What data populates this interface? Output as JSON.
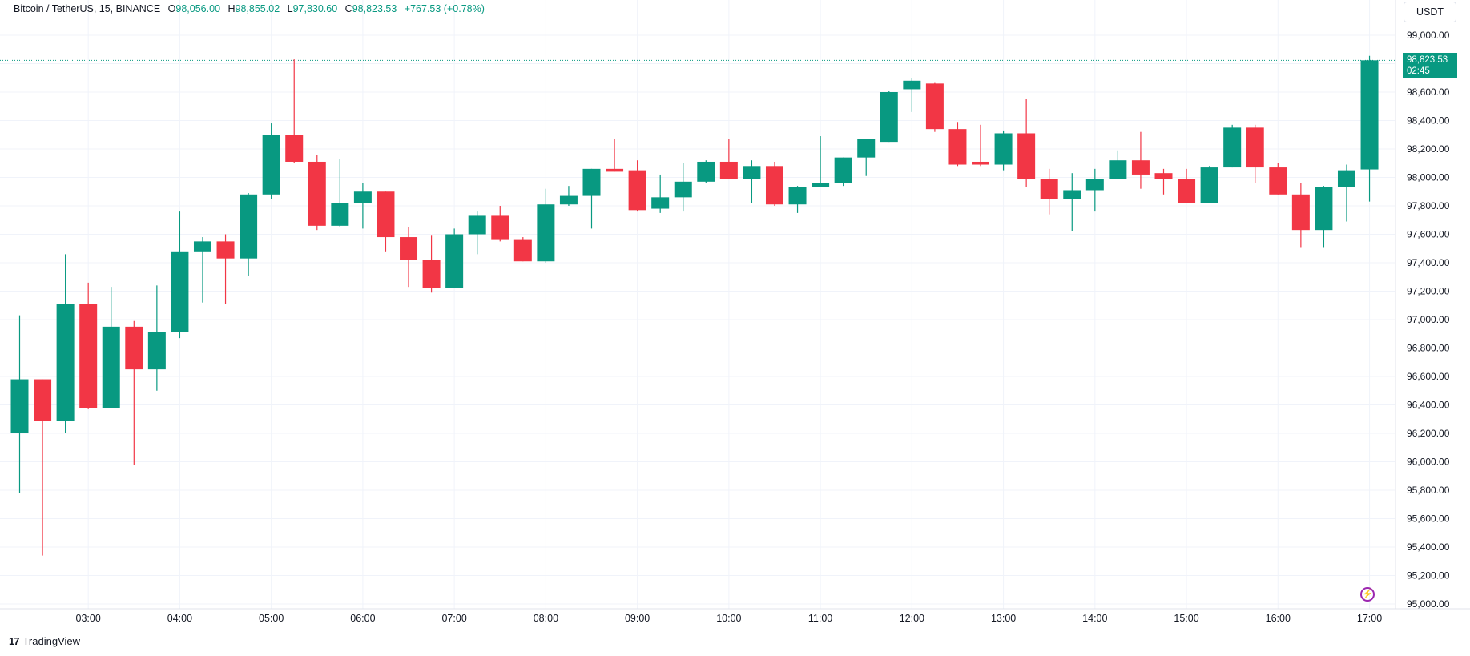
{
  "legend": {
    "symbol": "Bitcoin / TetherUS, 15, BINANCE",
    "o_label": "O",
    "open": "98,056.00",
    "h_label": "H",
    "high": "98,855.02",
    "l_label": "L",
    "low": "97,830.60",
    "c_label": "C",
    "close": "98,823.53",
    "change": "+767.53 (+0.78%)"
  },
  "currency_button": "USDT",
  "price_tag": {
    "price": "98,823.53",
    "countdown": "02:45"
  },
  "brand": "TradingView",
  "colors": {
    "up": "#089981",
    "down": "#f23645",
    "grid": "#f0f3fa",
    "text": "#131722"
  },
  "icons": {
    "flash": "lightning-icon",
    "logo": "tradingview-logo-icon"
  },
  "chart_data": {
    "type": "candlestick",
    "interval": "15",
    "ylim": [
      95000,
      99300
    ],
    "y_ticks": [
      "95,000.00",
      "95,200.00",
      "95,400.00",
      "95,600.00",
      "95,800.00",
      "96,000.00",
      "96,200.00",
      "96,400.00",
      "96,600.00",
      "96,800.00",
      "97,000.00",
      "97,200.00",
      "97,400.00",
      "97,600.00",
      "97,800.00",
      "98,000.00",
      "98,200.00",
      "98,400.00",
      "98,600.00",
      "98,800.00",
      "99,000.00"
    ],
    "x_ticks": [
      "03:00",
      "04:00",
      "05:00",
      "06:00",
      "07:00",
      "08:00",
      "09:00",
      "10:00",
      "11:00",
      "12:00",
      "13:00",
      "14:00",
      "15:00",
      "16:00",
      "17:00"
    ],
    "first_candle_time": "02:15",
    "candles": [
      {
        "o": 96200,
        "h": 97030,
        "l": 95780,
        "c": 96580
      },
      {
        "o": 96580,
        "h": 96580,
        "l": 95340,
        "c": 96290
      },
      {
        "o": 96290,
        "h": 97460,
        "l": 96200,
        "c": 97110
      },
      {
        "o": 97110,
        "h": 97260,
        "l": 96370,
        "c": 96380
      },
      {
        "o": 96380,
        "h": 97230,
        "l": 96380,
        "c": 96950
      },
      {
        "o": 96950,
        "h": 96990,
        "l": 95980,
        "c": 96650
      },
      {
        "o": 96650,
        "h": 97240,
        "l": 96500,
        "c": 96910
      },
      {
        "o": 96910,
        "h": 97760,
        "l": 96870,
        "c": 97480
      },
      {
        "o": 97480,
        "h": 97580,
        "l": 97120,
        "c": 97550
      },
      {
        "o": 97550,
        "h": 97600,
        "l": 97110,
        "c": 97430
      },
      {
        "o": 97430,
        "h": 97890,
        "l": 97310,
        "c": 97880
      },
      {
        "o": 97880,
        "h": 98380,
        "l": 97850,
        "c": 98300
      },
      {
        "o": 98300,
        "h": 98830,
        "l": 98100,
        "c": 98110
      },
      {
        "o": 98110,
        "h": 98160,
        "l": 97630,
        "c": 97660
      },
      {
        "o": 97660,
        "h": 98130,
        "l": 97650,
        "c": 97820
      },
      {
        "o": 97820,
        "h": 97960,
        "l": 97640,
        "c": 97900
      },
      {
        "o": 97900,
        "h": 97900,
        "l": 97480,
        "c": 97580
      },
      {
        "o": 97580,
        "h": 97650,
        "l": 97230,
        "c": 97420
      },
      {
        "o": 97420,
        "h": 97590,
        "l": 97190,
        "c": 97220
      },
      {
        "o": 97220,
        "h": 97640,
        "l": 97220,
        "c": 97600
      },
      {
        "o": 97600,
        "h": 97760,
        "l": 97460,
        "c": 97730
      },
      {
        "o": 97730,
        "h": 97800,
        "l": 97550,
        "c": 97560
      },
      {
        "o": 97560,
        "h": 97580,
        "l": 97410,
        "c": 97410
      },
      {
        "o": 97410,
        "h": 97920,
        "l": 97400,
        "c": 97810
      },
      {
        "o": 97810,
        "h": 97940,
        "l": 97800,
        "c": 97870
      },
      {
        "o": 97870,
        "h": 98060,
        "l": 97640,
        "c": 98060
      },
      {
        "o": 98060,
        "h": 98270,
        "l": 98040,
        "c": 98040
      },
      {
        "o": 98050,
        "h": 98120,
        "l": 97760,
        "c": 97770
      },
      {
        "o": 97780,
        "h": 98020,
        "l": 97750,
        "c": 97860
      },
      {
        "o": 97860,
        "h": 98100,
        "l": 97760,
        "c": 97970
      },
      {
        "o": 97970,
        "h": 98120,
        "l": 97960,
        "c": 98110
      },
      {
        "o": 98110,
        "h": 98270,
        "l": 97990,
        "c": 97990
      },
      {
        "o": 97990,
        "h": 98120,
        "l": 97820,
        "c": 98080
      },
      {
        "o": 98080,
        "h": 98110,
        "l": 97800,
        "c": 97810
      },
      {
        "o": 97810,
        "h": 97940,
        "l": 97750,
        "c": 97930
      },
      {
        "o": 97930,
        "h": 98290,
        "l": 97930,
        "c": 97960
      },
      {
        "o": 97960,
        "h": 98140,
        "l": 97940,
        "c": 98140
      },
      {
        "o": 98140,
        "h": 98270,
        "l": 98010,
        "c": 98270
      },
      {
        "o": 98250,
        "h": 98610,
        "l": 98250,
        "c": 98600
      },
      {
        "o": 98620,
        "h": 98700,
        "l": 98460,
        "c": 98680
      },
      {
        "o": 98660,
        "h": 98670,
        "l": 98320,
        "c": 98340
      },
      {
        "o": 98340,
        "h": 98390,
        "l": 98080,
        "c": 98090
      },
      {
        "o": 98110,
        "h": 98370,
        "l": 98080,
        "c": 98090
      },
      {
        "o": 98090,
        "h": 98330,
        "l": 98050,
        "c": 98310
      },
      {
        "o": 98310,
        "h": 98550,
        "l": 97930,
        "c": 97990
      },
      {
        "o": 97990,
        "h": 98060,
        "l": 97740,
        "c": 97850
      },
      {
        "o": 97850,
        "h": 98030,
        "l": 97620,
        "c": 97910
      },
      {
        "o": 97910,
        "h": 98060,
        "l": 97760,
        "c": 97990
      },
      {
        "o": 97990,
        "h": 98190,
        "l": 97990,
        "c": 98120
      },
      {
        "o": 98120,
        "h": 98320,
        "l": 97920,
        "c": 98020
      },
      {
        "o": 98030,
        "h": 98060,
        "l": 97880,
        "c": 97990
      },
      {
        "o": 97990,
        "h": 98060,
        "l": 97820,
        "c": 97820
      },
      {
        "o": 97820,
        "h": 98080,
        "l": 97820,
        "c": 98070
      },
      {
        "o": 98070,
        "h": 98370,
        "l": 98070,
        "c": 98350
      },
      {
        "o": 98350,
        "h": 98370,
        "l": 97960,
        "c": 98070
      },
      {
        "o": 98070,
        "h": 98100,
        "l": 97880,
        "c": 97880
      },
      {
        "o": 97880,
        "h": 97960,
        "l": 97510,
        "c": 97630
      },
      {
        "o": 97630,
        "h": 97940,
        "l": 97510,
        "c": 97930
      },
      {
        "o": 97930,
        "h": 98090,
        "l": 97690,
        "c": 98050
      },
      {
        "o": 98056,
        "h": 98855.02,
        "l": 97830.6,
        "c": 98823.53
      }
    ],
    "last_price": 98823.53,
    "grid": true
  }
}
